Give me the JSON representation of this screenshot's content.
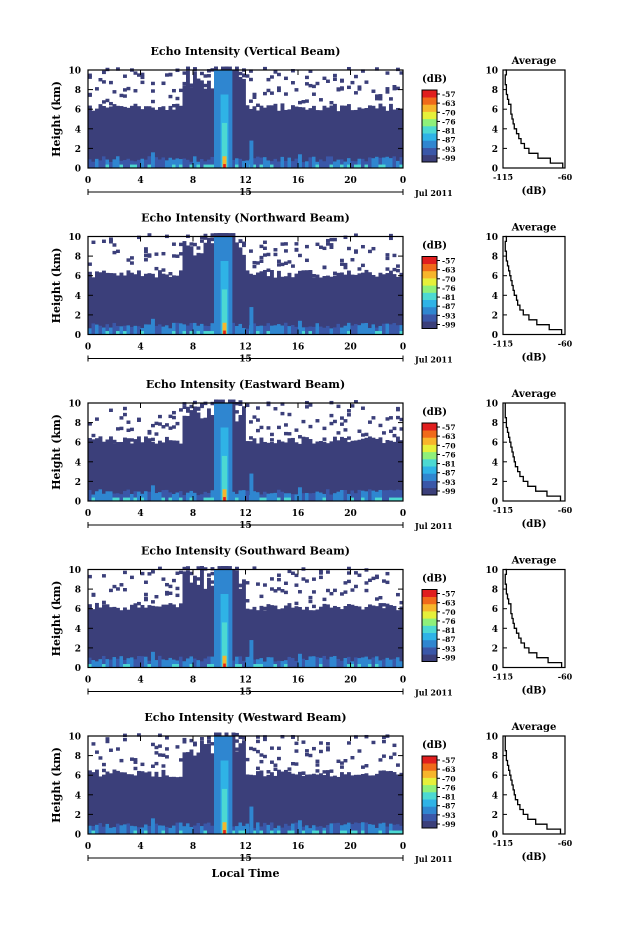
{
  "colors": {
    "background": "#3b3f7a",
    "colorbar": [
      "#3b3f7a",
      "#3a57a8",
      "#2f86d0",
      "#2fb3e6",
      "#4cd9d2",
      "#8ff07a",
      "#e6f03a",
      "#f7b52b",
      "#f06a1a",
      "#e01e1e"
    ]
  },
  "common": {
    "xlabel": "Local Time",
    "ylabel": "Height (km)",
    "date_center": "15",
    "date_right": "Jul 2011",
    "cbar_unit": "(dB)",
    "avg_title": "Average",
    "avg_xlabel": "(dB)"
  },
  "chart_data": [
    {
      "type": "heatmap",
      "title": "Echo Intensity (Vertical Beam)",
      "xlabel": "",
      "ylabel": "Height (km)",
      "xlim": [
        0,
        24
      ],
      "ylim": [
        0,
        10
      ],
      "xticks": [
        "0",
        "4",
        "8",
        "12",
        "16",
        "20",
        "0"
      ],
      "yticks": [
        "0",
        "2",
        "4",
        "6",
        "8",
        "10"
      ],
      "colorbar": {
        "label": "(dB)",
        "ticks": [
          "-57",
          "-63",
          "-70",
          "-76",
          "-81",
          "-87",
          "-93",
          "-99"
        ]
      },
      "average": {
        "title": "Average",
        "xlabel": "(dB)",
        "xticks": [
          "-115",
          "-60"
        ],
        "xlim": [
          -115,
          -60
        ],
        "height": [
          0,
          0.5,
          1,
          1.5,
          2,
          2.5,
          3,
          3.5,
          4,
          4.5,
          5,
          5.5,
          6,
          6.5,
          7,
          7.5,
          8,
          8.5,
          9,
          9.5,
          10
        ],
        "value": [
          -62,
          -73,
          -84,
          -92,
          -96,
          -99,
          -101,
          -103,
          -105,
          -106,
          -107,
          -108,
          -108,
          -110,
          -111,
          -112,
          -112,
          -113,
          -113,
          -112,
          -113
        ]
      }
    },
    {
      "type": "heatmap",
      "title": "Echo Intensity (Northward Beam)",
      "xlabel": "",
      "ylabel": "Height (km)",
      "xlim": [
        0,
        24
      ],
      "ylim": [
        0,
        10
      ],
      "xticks": [
        "0",
        "4",
        "8",
        "12",
        "16",
        "20",
        "0"
      ],
      "yticks": [
        "0",
        "2",
        "4",
        "6",
        "8",
        "10"
      ],
      "colorbar": {
        "label": "(dB)",
        "ticks": [
          "-57",
          "-63",
          "-70",
          "-76",
          "-81",
          "-87",
          "-93",
          "-99"
        ]
      },
      "average": {
        "title": "Average",
        "xlabel": "(dB)",
        "xticks": [
          "-115",
          "-60"
        ],
        "xlim": [
          -115,
          -60
        ],
        "height": [
          0,
          0.5,
          1,
          1.5,
          2,
          2.5,
          3,
          3.5,
          4,
          4.5,
          5,
          5.5,
          6,
          6.5,
          7,
          7.5,
          8,
          8.5,
          9,
          9.5,
          10
        ],
        "value": [
          -63,
          -74,
          -85,
          -92,
          -97,
          -100,
          -102,
          -103,
          -105,
          -106,
          -107,
          -108,
          -109,
          -110,
          -111,
          -112,
          -112,
          -113,
          -113,
          -112,
          -113
        ]
      }
    },
    {
      "type": "heatmap",
      "title": "Echo Intensity (Eastward Beam)",
      "xlabel": "",
      "ylabel": "Height (km)",
      "xlim": [
        0,
        24
      ],
      "ylim": [
        0,
        10
      ],
      "xticks": [
        "0",
        "4",
        "8",
        "12",
        "16",
        "20",
        "0"
      ],
      "yticks": [
        "0",
        "2",
        "4",
        "6",
        "8",
        "10"
      ],
      "colorbar": {
        "label": "(dB)",
        "ticks": [
          "-57",
          "-63",
          "-70",
          "-76",
          "-81",
          "-87",
          "-93",
          "-99"
        ]
      },
      "average": {
        "title": "Average",
        "xlabel": "(dB)",
        "xticks": [
          "-115",
          "-60"
        ],
        "xlim": [
          -115,
          -60
        ],
        "height": [
          0,
          0.5,
          1,
          1.5,
          2,
          2.5,
          3,
          3.5,
          4,
          4.5,
          5,
          5.5,
          6,
          6.5,
          7,
          7.5,
          8,
          8.5,
          9,
          9.5,
          10
        ],
        "value": [
          -64,
          -76,
          -86,
          -93,
          -97,
          -100,
          -102,
          -104,
          -105,
          -106,
          -107,
          -108,
          -109,
          -110,
          -111,
          -112,
          -112,
          -113,
          -113,
          -113,
          -113
        ]
      }
    },
    {
      "type": "heatmap",
      "title": "Echo Intensity (Southward Beam)",
      "xlabel": "",
      "ylabel": "Height (km)",
      "xlim": [
        0,
        24
      ],
      "ylim": [
        0,
        10
      ],
      "xticks": [
        "0",
        "4",
        "8",
        "12",
        "16",
        "20",
        "0"
      ],
      "yticks": [
        "0",
        "2",
        "4",
        "6",
        "8",
        "10"
      ],
      "colorbar": {
        "label": "(dB)",
        "ticks": [
          "-57",
          "-63",
          "-70",
          "-76",
          "-81",
          "-87",
          "-93",
          "-99"
        ]
      },
      "average": {
        "title": "Average",
        "xlabel": "(dB)",
        "xticks": [
          "-115",
          "-60"
        ],
        "xlim": [
          -115,
          -60
        ],
        "height": [
          0,
          0.5,
          1,
          1.5,
          2,
          2.5,
          3,
          3.5,
          4,
          4.5,
          5,
          5.5,
          6,
          6.5,
          7,
          7.5,
          8,
          8.5,
          9,
          9.5,
          10
        ],
        "value": [
          -63,
          -75,
          -85,
          -92,
          -96,
          -99,
          -101,
          -103,
          -105,
          -106,
          -107,
          -108,
          -108,
          -110,
          -111,
          -112,
          -112,
          -113,
          -113,
          -112,
          -113
        ]
      }
    },
    {
      "type": "heatmap",
      "title": "Echo Intensity (Westward Beam)",
      "xlabel": "Local Time",
      "ylabel": "Height (km)",
      "xlim": [
        0,
        24
      ],
      "ylim": [
        0,
        10
      ],
      "xticks": [
        "0",
        "4",
        "8",
        "12",
        "16",
        "20",
        "0"
      ],
      "yticks": [
        "0",
        "2",
        "4",
        "6",
        "8",
        "10"
      ],
      "colorbar": {
        "label": "(dB)",
        "ticks": [
          "-57",
          "-63",
          "-70",
          "-76",
          "-81",
          "-87",
          "-93",
          "-99"
        ]
      },
      "average": {
        "title": "Average",
        "xlabel": "(dB)",
        "xticks": [
          "-115",
          "-60"
        ],
        "xlim": [
          -115,
          -60
        ],
        "height": [
          0,
          0.5,
          1,
          1.5,
          2,
          2.5,
          3,
          3.5,
          4,
          4.5,
          5,
          5.5,
          6,
          6.5,
          7,
          7.5,
          8,
          8.5,
          9,
          9.5,
          10
        ],
        "value": [
          -64,
          -76,
          -86,
          -93,
          -97,
          -100,
          -102,
          -104,
          -105,
          -106,
          -107,
          -108,
          -109,
          -110,
          -111,
          -112,
          -112,
          -113,
          -113,
          -113,
          -113
        ]
      }
    }
  ]
}
